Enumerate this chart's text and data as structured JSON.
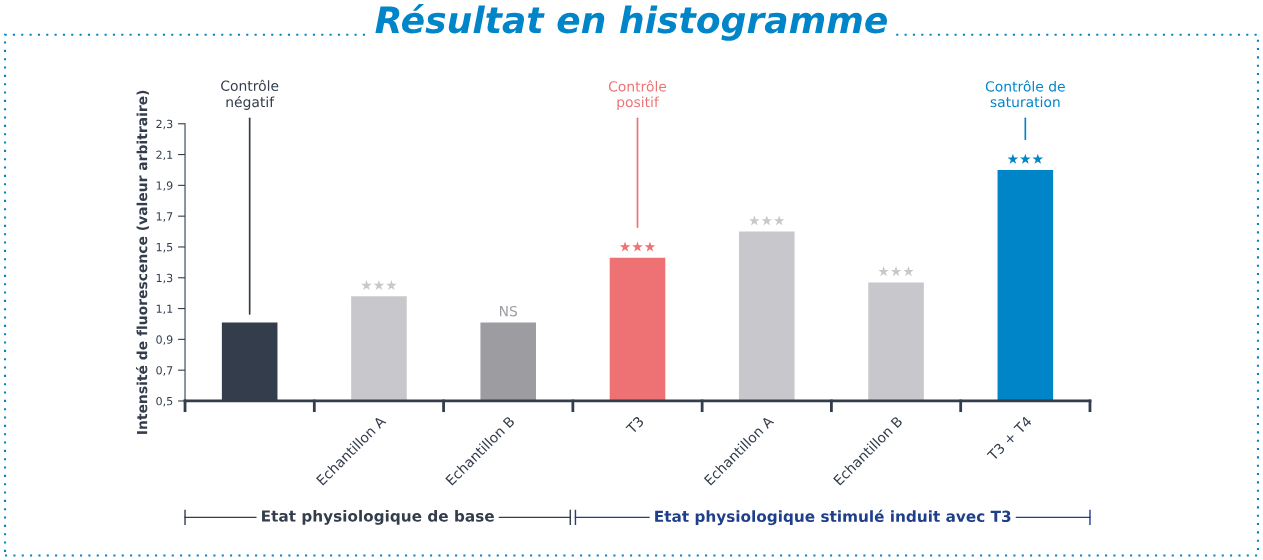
{
  "chart_data": {
    "type": "bar",
    "title": "Résultat en histogramme",
    "ylabel": "Intensité de fluorescence (valeur arbitraire)",
    "categories": [
      null,
      "Echantillon A",
      "Echantillon B",
      "T3",
      "Echantillon A",
      "Echantillon B",
      "T3 + T4"
    ],
    "values": [
      1.01,
      1.18,
      1.01,
      1.43,
      1.6,
      1.27,
      2.0
    ],
    "colors": [
      "#333d4b",
      "#c8c8cc",
      "#9d9ca1",
      "#ee7274",
      "#c8c8cc",
      "#c8c8cc",
      "#0085c8"
    ],
    "value_labels": [
      null,
      "★★★",
      "NS",
      "★★★",
      "★★★",
      "★★★",
      "★★★"
    ],
    "ylim": [
      0.5,
      2.3
    ],
    "yticks": [
      {
        "value": 0.5,
        "label": "0,5"
      },
      {
        "value": 0.7,
        "label": "0,7"
      },
      {
        "value": 0.9,
        "label": "0,9"
      },
      {
        "value": 1.1,
        "label": "1,1"
      },
      {
        "value": 1.3,
        "label": "1,3"
      },
      {
        "value": 1.5,
        "label": "1,5"
      },
      {
        "value": 1.7,
        "label": "1,7"
      },
      {
        "value": 1.9,
        "label": "1,9"
      },
      {
        "value": 2.1,
        "label": "2,1"
      },
      {
        "value": 2.3,
        "label": "2,3"
      }
    ],
    "annotations": [
      "Contrôle\nnégatif",
      "Contrôle\npositif",
      "Contrôle de\nsaturation",
      "Etat physiologique de base",
      "Etat physiologique stimulé induit avec T3"
    ],
    "grid": false,
    "legend": false
  }
}
